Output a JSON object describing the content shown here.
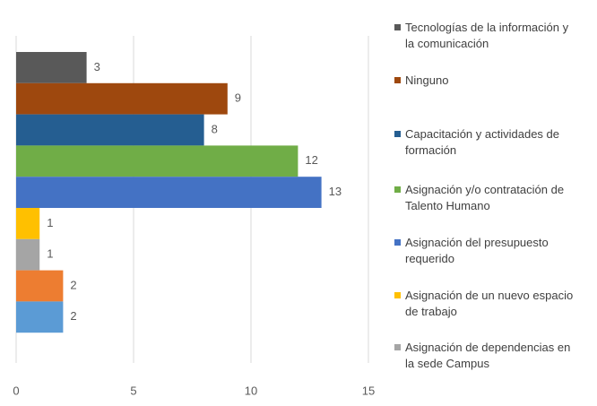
{
  "chart_data": {
    "type": "hbar",
    "categories": [
      "Tecnologías de la información y la comunicación",
      "Ninguno",
      "Capacitación y actividades de formación",
      "Asignación y/o contratación de Talento Humano",
      "Asignación del presupuesto requerido",
      "Asignación de un nuevo espacio de trabajo",
      "Asignación de dependencias en la sede Campus",
      null,
      null
    ],
    "values": [
      3,
      9,
      8,
      12,
      13,
      1,
      1,
      2,
      2
    ],
    "colors": [
      "#595959",
      "#9e480e",
      "#255e91",
      "#70ad47",
      "#4472c4",
      "#ffc000",
      "#a5a5a5",
      "#ed7d31",
      "#5b9bd5"
    ],
    "xlim": [
      0,
      15
    ],
    "xticks": [
      0,
      5,
      10,
      15
    ],
    "grid": true,
    "legend": "right"
  }
}
